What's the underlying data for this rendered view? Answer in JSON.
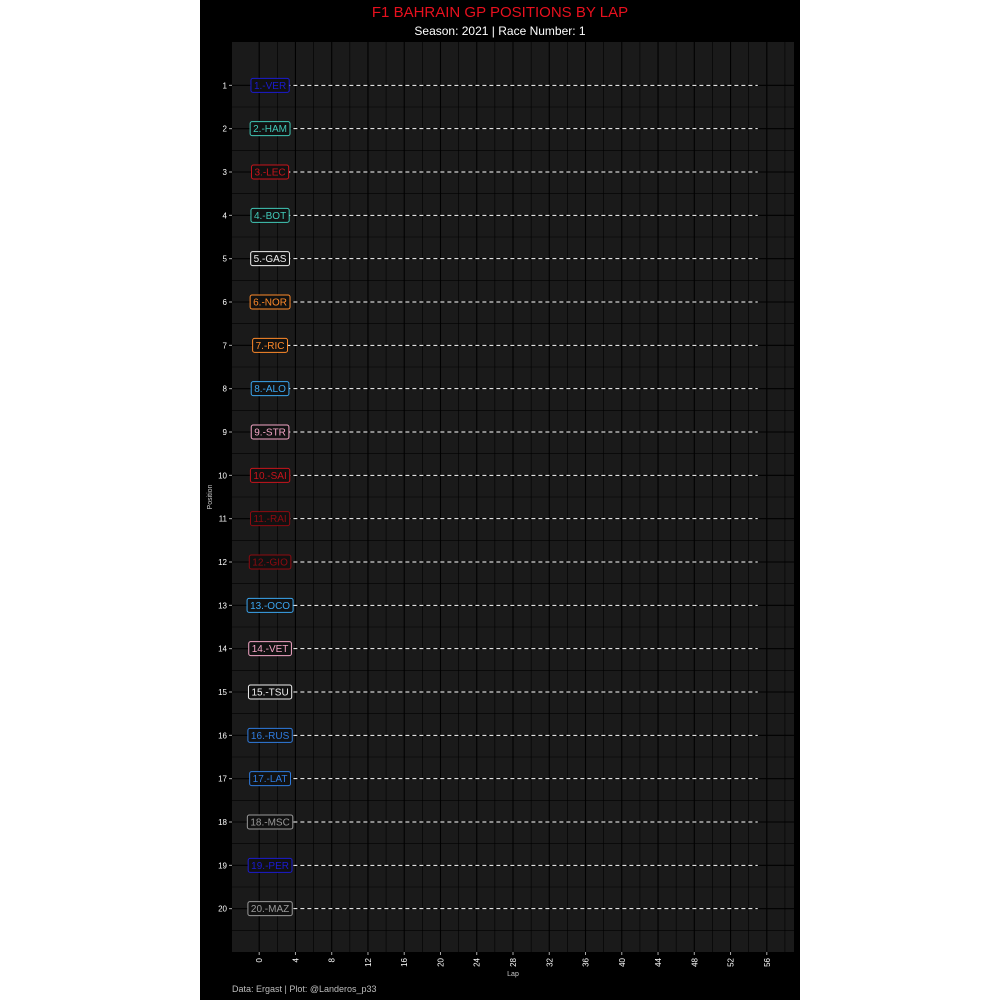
{
  "title": "F1 BAHRAIN GP POSITIONS BY LAP",
  "subtitle": "Season: 2021 | Race Number: 1",
  "caption": "Data: Ergast | Plot: @Landeros_p33",
  "chart_data": {
    "type": "line",
    "xlabel": "Lap",
    "ylabel": "Position",
    "xlim": [
      -3,
      59
    ],
    "ylim": [
      0,
      21
    ],
    "y_reversed": true,
    "x_ticks": [
      0,
      4,
      8,
      12,
      16,
      20,
      24,
      28,
      32,
      36,
      40,
      44,
      48,
      52,
      56
    ],
    "y_ticks": [
      1,
      2,
      3,
      4,
      5,
      6,
      7,
      8,
      9,
      10,
      11,
      12,
      13,
      14,
      15,
      16,
      17,
      18,
      19,
      20
    ],
    "grid": true,
    "panel_background": "#1a1a1a",
    "grid_color": "#000000",
    "line_style": "dashed",
    "line_color": "#ffffff",
    "line_x_range": [
      3,
      55
    ],
    "series": [
      {
        "name": "VER",
        "label": "1.-VER",
        "position": 1,
        "color": "#1b1bd0"
      },
      {
        "name": "HAM",
        "label": "2.-HAM",
        "position": 2,
        "color": "#41c9b8"
      },
      {
        "name": "LEC",
        "label": "3.-LEC",
        "position": 3,
        "color": "#c8141c"
      },
      {
        "name": "BOT",
        "label": "4.-BOT",
        "position": 4,
        "color": "#41c9b8"
      },
      {
        "name": "GAS",
        "label": "5.-GAS",
        "position": 5,
        "color": "#f0f0f0"
      },
      {
        "name": "NOR",
        "label": "6.-NOR",
        "position": 6,
        "color": "#ff8a2a"
      },
      {
        "name": "RIC",
        "label": "7.-RIC",
        "position": 7,
        "color": "#ff8a2a"
      },
      {
        "name": "ALO",
        "label": "8.-ALO",
        "position": 8,
        "color": "#3ba6f0"
      },
      {
        "name": "STR",
        "label": "9.-STR",
        "position": 9,
        "color": "#f4a6c6"
      },
      {
        "name": "SAI",
        "label": "10.-SAI",
        "position": 10,
        "color": "#c8141c"
      },
      {
        "name": "RAI",
        "label": "11.-RAI",
        "position": 11,
        "color": "#8e0a10"
      },
      {
        "name": "GIO",
        "label": "12.-GIO",
        "position": 12,
        "color": "#8e0a10"
      },
      {
        "name": "OCO",
        "label": "13.-OCO",
        "position": 13,
        "color": "#3ba6f0"
      },
      {
        "name": "VET",
        "label": "14.-VET",
        "position": 14,
        "color": "#f4a6c6"
      },
      {
        "name": "TSU",
        "label": "15.-TSU",
        "position": 15,
        "color": "#f0f0f0"
      },
      {
        "name": "RUS",
        "label": "16.-RUS",
        "position": 16,
        "color": "#2f7ce0"
      },
      {
        "name": "LAT",
        "label": "17.-LAT",
        "position": 17,
        "color": "#2f7ce0"
      },
      {
        "name": "MSC",
        "label": "18.-MSC",
        "position": 18,
        "color": "#9a9a9a"
      },
      {
        "name": "PER",
        "label": "19.-PER",
        "position": 19,
        "color": "#1b1bd0"
      },
      {
        "name": "MAZ",
        "label": "20.-MAZ",
        "position": 20,
        "color": "#9a9a9a"
      }
    ]
  }
}
